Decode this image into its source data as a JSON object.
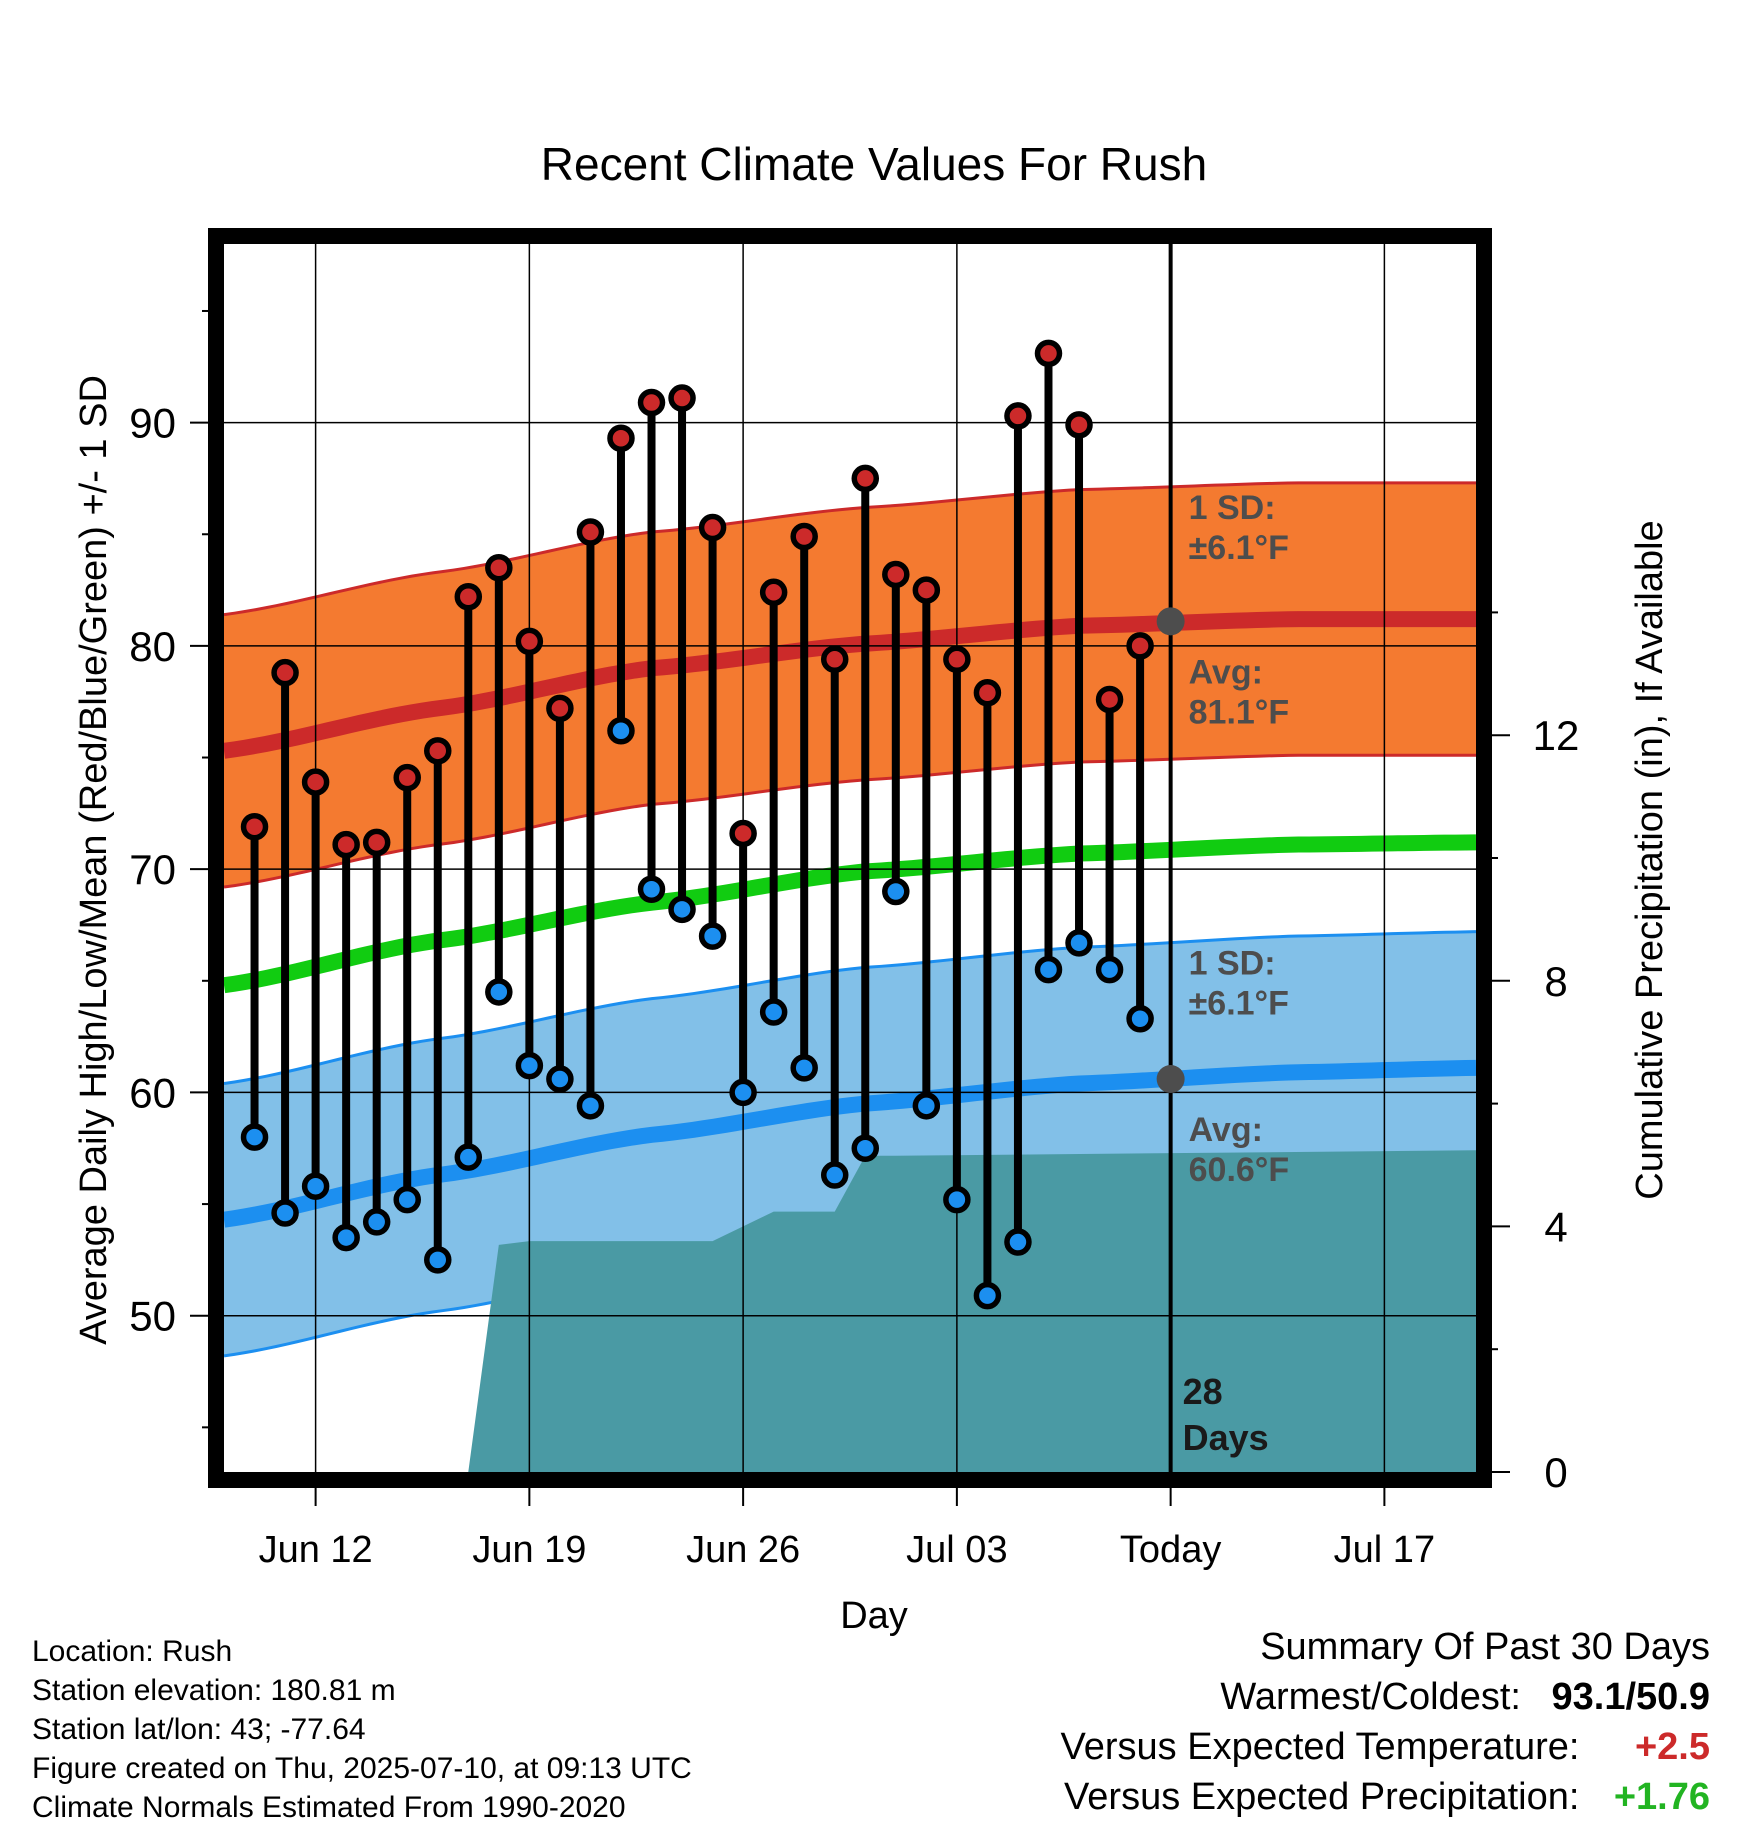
{
  "chart_data": {
    "type": "line",
    "title": "Recent Climate Values For Rush",
    "xlabel": "Day",
    "ylabel": "Average Daily High/Low/Mean (Red/Blue/Green) +/- 1 SD",
    "y2label": "Cumulative Precipitation (in), If Available",
    "ylim": [
      43,
      98
    ],
    "y2lim": [
      0,
      20
    ],
    "xlim": [
      "2025-06-09",
      "2025-07-20"
    ],
    "grid": true,
    "x_tick_labels": [
      {
        "date": "2025-06-12",
        "label": "Jun 12"
      },
      {
        "date": "2025-06-19",
        "label": "Jun 19"
      },
      {
        "date": "2025-06-26",
        "label": "Jun 26"
      },
      {
        "date": "2025-07-03",
        "label": "Jul 03"
      },
      {
        "date": "2025-07-10",
        "label": "Today"
      },
      {
        "date": "2025-07-17",
        "label": "Jul 17"
      }
    ],
    "y_ticks": [
      50,
      60,
      70,
      80,
      90
    ],
    "y2_ticks": [
      0,
      4,
      8,
      12
    ],
    "today": "2025-07-10",
    "days_label": [
      "28",
      "Days"
    ],
    "daily": {
      "dates": [
        "2025-06-10",
        "2025-06-11",
        "2025-06-12",
        "2025-06-13",
        "2025-06-14",
        "2025-06-15",
        "2025-06-16",
        "2025-06-17",
        "2025-06-18",
        "2025-06-19",
        "2025-06-20",
        "2025-06-21",
        "2025-06-22",
        "2025-06-23",
        "2025-06-24",
        "2025-06-25",
        "2025-06-26",
        "2025-06-27",
        "2025-06-28",
        "2025-06-29",
        "2025-06-30",
        "2025-07-01",
        "2025-07-02",
        "2025-07-03",
        "2025-07-04",
        "2025-07-05",
        "2025-07-06",
        "2025-07-07",
        "2025-07-08",
        "2025-07-09"
      ],
      "highs": [
        71.9,
        78.8,
        73.9,
        71.1,
        71.2,
        74.1,
        75.3,
        82.2,
        83.5,
        80.2,
        77.2,
        85.1,
        89.3,
        90.9,
        91.1,
        85.3,
        71.6,
        82.4,
        84.9,
        79.4,
        87.5,
        83.2,
        82.5,
        79.4,
        77.9,
        90.3,
        93.1,
        89.9,
        77.6,
        80.0
      ],
      "lows": [
        58.0,
        54.6,
        55.8,
        53.5,
        54.2,
        55.2,
        52.5,
        57.1,
        64.5,
        61.2,
        60.6,
        59.4,
        76.2,
        69.1,
        68.2,
        67.0,
        60.0,
        63.6,
        61.1,
        56.3,
        57.5,
        69.0,
        59.4,
        55.2,
        50.9,
        53.3,
        65.5,
        66.7,
        65.5,
        63.3
      ]
    },
    "normals": {
      "dates": [
        "2025-06-09",
        "2025-06-16",
        "2025-06-23",
        "2025-06-30",
        "2025-07-07",
        "2025-07-14",
        "2025-07-20"
      ],
      "avg_high": [
        75.3,
        77.2,
        79.0,
        80.1,
        80.9,
        81.2,
        81.2
      ],
      "avg_low": [
        54.3,
        56.3,
        58.1,
        59.5,
        60.4,
        60.9,
        61.1
      ],
      "avg_mean": [
        64.8,
        66.8,
        68.5,
        69.9,
        70.7,
        71.1,
        71.2
      ],
      "high_sd": 6.1,
      "low_sd": 6.1
    },
    "precip": {
      "dates": [
        "2025-06-09",
        "2025-06-17",
        "2025-06-18",
        "2025-06-19",
        "2025-06-25",
        "2025-06-26",
        "2025-06-27",
        "2025-06-28",
        "2025-06-29",
        "2025-06-30",
        "2025-07-01",
        "2025-07-20"
      ],
      "cumulative": [
        0,
        0,
        3.7,
        3.76,
        3.76,
        4.0,
        4.24,
        4.24,
        4.24,
        5.15,
        5.15,
        5.24
      ]
    },
    "annotations": {
      "high_sd_label": [
        "1 SD:",
        "±6.1°F"
      ],
      "high_avg_label": [
        "Avg:",
        "81.1°F"
      ],
      "low_sd_label": [
        "1 SD:",
        "±6.1°F"
      ],
      "low_avg_label": [
        "Avg:",
        "60.6°F"
      ],
      "high_avg_today": 81.1,
      "low_avg_today": 60.6
    },
    "colors": {
      "high_band": "#f47a30",
      "high_line": "#cc2a2a",
      "low_band": "#82c0e8",
      "low_line": "#1c8ff0",
      "mean_line": "#11cc11",
      "precip": "#4a9aa4",
      "high_dot": "#cc2a2a",
      "low_dot": "#1c8ff0",
      "annotation_text": "#4d4d4d"
    }
  },
  "info": {
    "location": "Location: Rush",
    "elevation": "Station elevation: 180.81 m",
    "latlon": "Station lat/lon: 43; -77.64",
    "created": "Figure created on Thu, 2025-07-10, at 09:13 UTC",
    "normals": "Climate Normals Estimated From 1990-2020"
  },
  "summary": {
    "heading": "Summary Of Past 30 Days",
    "warmest_label": "Warmest/Coldest:",
    "warmest_value": "93.1/50.9",
    "temp_label": "Versus Expected Temperature:",
    "temp_value": "+2.5",
    "temp_color": "#cc2a2a",
    "precip_label": "Versus Expected Precipitation:",
    "precip_value": "+1.76",
    "precip_color": "#22b422"
  }
}
